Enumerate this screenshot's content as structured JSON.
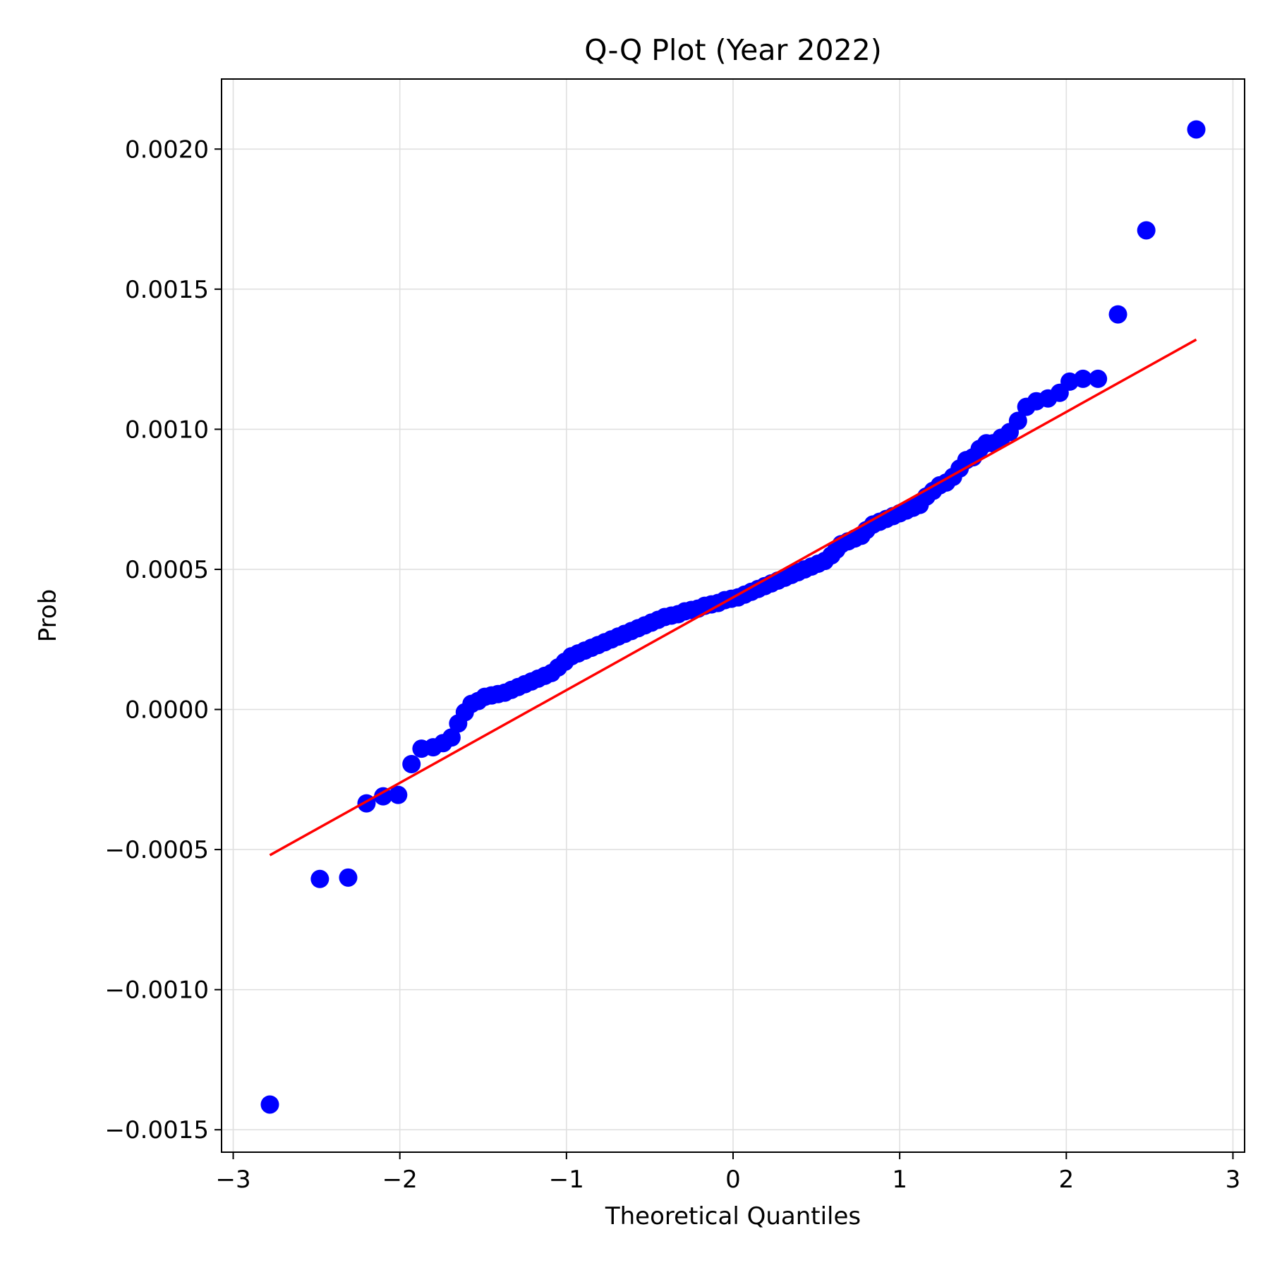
{
  "chart_data": {
    "type": "scatter",
    "title": "Q-Q Plot (Year 2022)",
    "xlabel": "Theoretical Quantiles",
    "ylabel": "Prob",
    "xlim": [
      -3.07,
      3.07
    ],
    "ylim": [
      -0.00158,
      0.00225
    ],
    "xticks": [
      -3,
      -2,
      -1,
      0,
      1,
      2,
      3
    ],
    "xtick_labels": [
      "−3",
      "−2",
      "−1",
      "0",
      "1",
      "2",
      "3"
    ],
    "yticks": [
      -0.0015,
      -0.001,
      -0.0005,
      0.0,
      0.0005,
      0.001,
      0.0015,
      0.002
    ],
    "ytick_labels": [
      "−0.0015",
      "−0.0010",
      "−0.0005",
      "0.0000",
      "0.0005",
      "0.0010",
      "0.0015",
      "0.0020"
    ],
    "grid": true,
    "colors": {
      "points": "#0000ff",
      "fit_line": "#ff0000",
      "grid": "#e0e0e0"
    },
    "fit_line": {
      "x": [
        -2.78,
        2.78
      ],
      "y": [
        -0.00052,
        0.00132
      ]
    },
    "points": [
      [
        -2.78,
        -0.00141
      ],
      [
        -2.48,
        -0.000605
      ],
      [
        -2.31,
        -0.0006
      ],
      [
        -2.2,
        -0.000335
      ],
      [
        -2.1,
        -0.00031
      ],
      [
        -2.01,
        -0.000305
      ],
      [
        -1.93,
        -0.000195
      ],
      [
        -1.87,
        -0.00014
      ],
      [
        -1.8,
        -0.000135
      ],
      [
        -1.74,
        -0.00012
      ],
      [
        -1.69,
        -0.0001
      ],
      [
        -1.65,
        -5e-05
      ],
      [
        -1.61,
        -1e-05
      ],
      [
        -1.57,
        2e-05
      ],
      [
        -1.53,
        3e-05
      ],
      [
        -1.49,
        4.5e-05
      ],
      [
        -1.45,
        5e-05
      ],
      [
        -1.41,
        5.5e-05
      ],
      [
        -1.37,
        6e-05
      ],
      [
        -1.33,
        7e-05
      ],
      [
        -1.29,
        8e-05
      ],
      [
        -1.25,
        9e-05
      ],
      [
        -1.21,
        0.0001
      ],
      [
        -1.17,
        0.00011
      ],
      [
        -1.13,
        0.00012
      ],
      [
        -1.09,
        0.00013
      ],
      [
        -1.05,
        0.00015
      ],
      [
        -1.01,
        0.00017
      ],
      [
        -0.97,
        0.00019
      ],
      [
        -0.93,
        0.0002
      ],
      [
        -0.89,
        0.00021
      ],
      [
        -0.85,
        0.00022
      ],
      [
        -0.81,
        0.00023
      ],
      [
        -0.77,
        0.00024
      ],
      [
        -0.73,
        0.00025
      ],
      [
        -0.69,
        0.00026
      ],
      [
        -0.65,
        0.00027
      ],
      [
        -0.61,
        0.00028
      ],
      [
        -0.57,
        0.00029
      ],
      [
        -0.53,
        0.0003
      ],
      [
        -0.49,
        0.00031
      ],
      [
        -0.45,
        0.00032
      ],
      [
        -0.41,
        0.00033
      ],
      [
        -0.37,
        0.000335
      ],
      [
        -0.33,
        0.00034
      ],
      [
        -0.29,
        0.00035
      ],
      [
        -0.25,
        0.000355
      ],
      [
        -0.21,
        0.00036
      ],
      [
        -0.17,
        0.00037
      ],
      [
        -0.13,
        0.000375
      ],
      [
        -0.09,
        0.00038
      ],
      [
        -0.05,
        0.00039
      ],
      [
        -0.01,
        0.000395
      ],
      [
        0.03,
        0.0004
      ],
      [
        0.07,
        0.00041
      ],
      [
        0.11,
        0.00042
      ],
      [
        0.15,
        0.00043
      ],
      [
        0.19,
        0.00044
      ],
      [
        0.23,
        0.00045
      ],
      [
        0.27,
        0.00046
      ],
      [
        0.31,
        0.00047
      ],
      [
        0.35,
        0.00048
      ],
      [
        0.39,
        0.00049
      ],
      [
        0.43,
        0.0005
      ],
      [
        0.47,
        0.00051
      ],
      [
        0.51,
        0.00052
      ],
      [
        0.55,
        0.00053
      ],
      [
        0.59,
        0.00055
      ],
      [
        0.62,
        0.00057
      ],
      [
        0.65,
        0.00059
      ],
      [
        0.69,
        0.0006
      ],
      [
        0.73,
        0.00061
      ],
      [
        0.77,
        0.00062
      ],
      [
        0.8,
        0.00064
      ],
      [
        0.84,
        0.00066
      ],
      [
        0.88,
        0.00067
      ],
      [
        0.92,
        0.00068
      ],
      [
        0.96,
        0.00069
      ],
      [
        1.0,
        0.0007
      ],
      [
        1.04,
        0.00071
      ],
      [
        1.08,
        0.00072
      ],
      [
        1.12,
        0.00073
      ],
      [
        1.16,
        0.00076
      ],
      [
        1.2,
        0.00078
      ],
      [
        1.24,
        0.0008
      ],
      [
        1.28,
        0.00081
      ],
      [
        1.32,
        0.00083
      ],
      [
        1.36,
        0.00086
      ],
      [
        1.4,
        0.00089
      ],
      [
        1.44,
        0.0009
      ],
      [
        1.48,
        0.00093
      ],
      [
        1.52,
        0.00095
      ],
      [
        1.56,
        0.00095
      ],
      [
        1.61,
        0.00097
      ],
      [
        1.66,
        0.00099
      ],
      [
        1.71,
        0.00103
      ],
      [
        1.76,
        0.00108
      ],
      [
        1.82,
        0.0011
      ],
      [
        1.89,
        0.00111
      ],
      [
        1.96,
        0.00113
      ],
      [
        2.02,
        0.00117
      ],
      [
        2.1,
        0.00118
      ],
      [
        2.19,
        0.00118
      ],
      [
        2.31,
        0.00141
      ],
      [
        2.48,
        0.00171
      ],
      [
        2.78,
        0.00207
      ]
    ]
  }
}
